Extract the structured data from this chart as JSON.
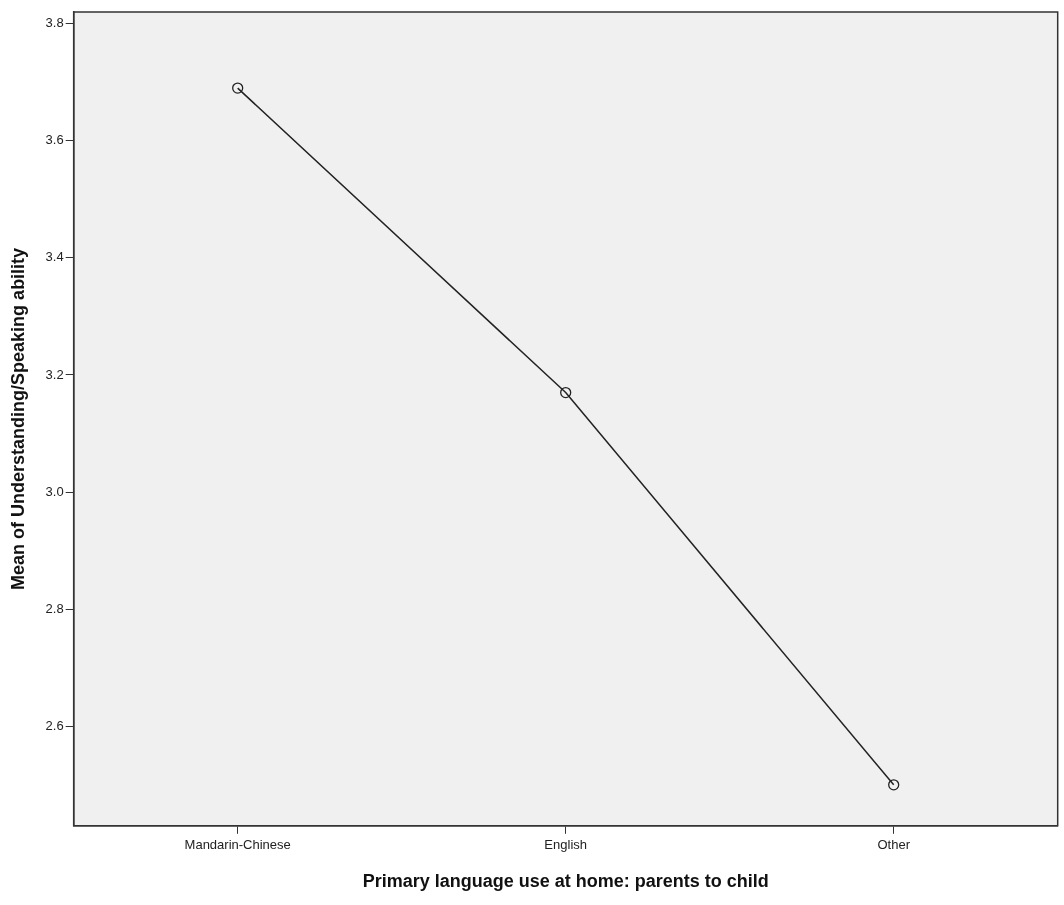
{
  "chart_data": {
    "type": "line",
    "xlabel": "Primary language use at home: parents to child",
    "ylabel": "Mean of Understanding/Speaking ability",
    "categories": [
      "Mandarin-Chinese",
      "English",
      "Other"
    ],
    "series": [
      {
        "color": "#222222",
        "values": [
          3.69,
          3.17,
          2.5
        ]
      }
    ],
    "ylim": [
      2.43,
      3.82
    ],
    "yticks": [
      {
        "value": 2.6,
        "label": "2.6"
      },
      {
        "value": 2.8,
        "label": "2.8"
      },
      {
        "value": 3.0,
        "label": "3.0"
      },
      {
        "value": 3.2,
        "label": "3.2"
      },
      {
        "value": 3.4,
        "label": "3.4"
      },
      {
        "value": 3.6,
        "label": "3.6"
      },
      {
        "value": 3.8,
        "label": "3.8"
      }
    ],
    "marker": "circle",
    "line_style": "solid",
    "grid": false,
    "legend": false
  }
}
